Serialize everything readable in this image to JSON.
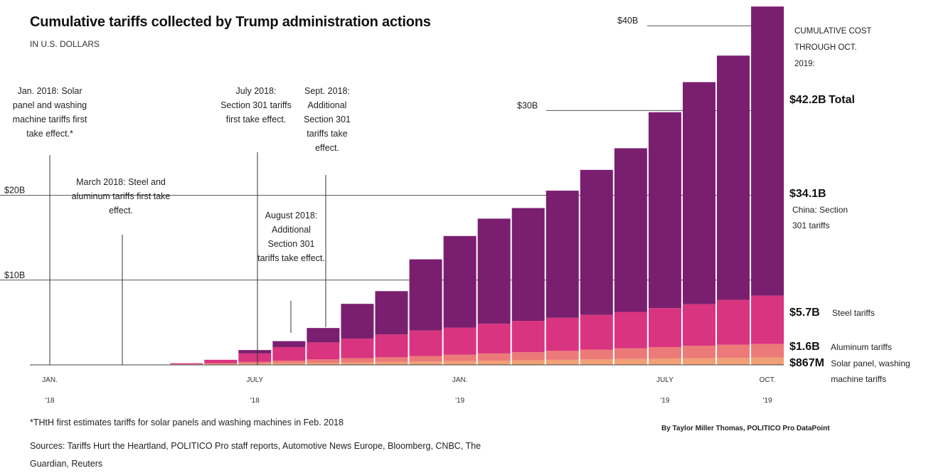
{
  "title": "Cumulative tariffs collected by Trump administration actions",
  "subtitle": "IN U.S. DOLLARS",
  "colors": {
    "solar": "#f0a077",
    "aluminum": "#ec7a78",
    "steel": "#d9347f",
    "china": "#7a1f6f"
  },
  "annotations": [
    {
      "text": "Jan. 2018: Solar panel and washing machine tariffs first take effect.*"
    },
    {
      "text": "March 2018: Steel and aluminum tariffs first take effect."
    },
    {
      "text": "July 2018: Section 301 tariffs first take effect."
    },
    {
      "text": "August 2018: Additional Section 301 tariffs take effect."
    },
    {
      "text": "Sept. 2018: Additional Section 301 tariffs take effect."
    }
  ],
  "right_header": "CUMULATIVE COST THROUGH OCT. 2019:",
  "right_labels": [
    {
      "value": "$42.2B",
      "label": "Total"
    },
    {
      "value": "$34.1B",
      "label": "China: Section 301 tariffs"
    },
    {
      "value": "$5.7B",
      "label": "Steel tariffs"
    },
    {
      "value": "$1.6B",
      "label": "Aluminum tariffs"
    },
    {
      "value": "$867M",
      "label": "Solar panel, washing machine tariffs"
    }
  ],
  "footnote": "*THtH first estimates tariffs for solar panels and washing machines in Feb. 2018",
  "sources": "Sources: Tariffs Hurt the Heartland, POLITICO Pro staff reports, Automotive News Europe, Bloomberg, CNBC, The Guardian, Reuters",
  "credit": "By Taylor Miller Thomas, POLITICO Pro DataPoint",
  "chart_data": {
    "type": "bar",
    "stacked": true,
    "ylabel": "",
    "ylim": [
      0,
      42.2
    ],
    "y_unit": "$B",
    "y_ticks": [
      {
        "value": 10,
        "label": "$10B"
      },
      {
        "value": 20,
        "label": "$20B"
      },
      {
        "value": 30,
        "label": "$30B"
      },
      {
        "value": 40,
        "label": "$40B"
      }
    ],
    "categories": [
      "Jan 2018",
      "Feb 2018",
      "Mar 2018",
      "Apr 2018",
      "May 2018",
      "Jun 2018",
      "Jul 2018",
      "Aug 2018",
      "Sep 2018",
      "Oct 2018",
      "Nov 2018",
      "Dec 2018",
      "Jan 2019",
      "Feb 2019",
      "Mar 2019",
      "Apr 2019",
      "May 2019",
      "Jun 2019",
      "Jul 2019",
      "Aug 2019",
      "Sep 2019",
      "Oct 2019"
    ],
    "x_ticks": [
      {
        "index": 0,
        "line1": "JAN.",
        "line2": "'18"
      },
      {
        "index": 6,
        "line1": "JULY",
        "line2": "'18"
      },
      {
        "index": 12,
        "line1": "JAN.",
        "line2": "'19"
      },
      {
        "index": 18,
        "line1": "JULY",
        "line2": "'19"
      },
      {
        "index": 21,
        "line1": "OCT.",
        "line2": "'19"
      }
    ],
    "series": [
      {
        "name": "Solar panel, washing machine tariffs",
        "color_key": "solar",
        "values": [
          0,
          0,
          0,
          0,
          0.05,
          0.1,
          0.15,
          0.2,
          0.25,
          0.3,
          0.35,
          0.4,
          0.45,
          0.5,
          0.55,
          0.6,
          0.65,
          0.7,
          0.75,
          0.8,
          0.83,
          0.867
        ]
      },
      {
        "name": "Aluminum tariffs",
        "color_key": "aluminum",
        "values": [
          0,
          0,
          0,
          0,
          0.05,
          0.1,
          0.2,
          0.3,
          0.4,
          0.5,
          0.55,
          0.65,
          0.75,
          0.85,
          0.95,
          1.05,
          1.15,
          1.25,
          1.35,
          1.45,
          1.55,
          1.6
        ]
      },
      {
        "name": "Steel tariffs",
        "color_key": "steel",
        "values": [
          0,
          0,
          0,
          0,
          0.1,
          0.4,
          1.0,
          1.6,
          2.0,
          2.3,
          2.7,
          3.0,
          3.2,
          3.5,
          3.7,
          3.9,
          4.1,
          4.3,
          4.6,
          4.9,
          5.3,
          5.7
        ]
      },
      {
        "name": "China: Section 301 tariffs",
        "color_key": "china",
        "values": [
          0,
          0,
          0,
          0,
          0,
          0,
          0.4,
          0.7,
          1.7,
          4.1,
          5.1,
          8.4,
          10.8,
          12.4,
          13.3,
          15.0,
          17.1,
          19.3,
          23.1,
          26.2,
          28.8,
          34.1
        ]
      }
    ]
  }
}
